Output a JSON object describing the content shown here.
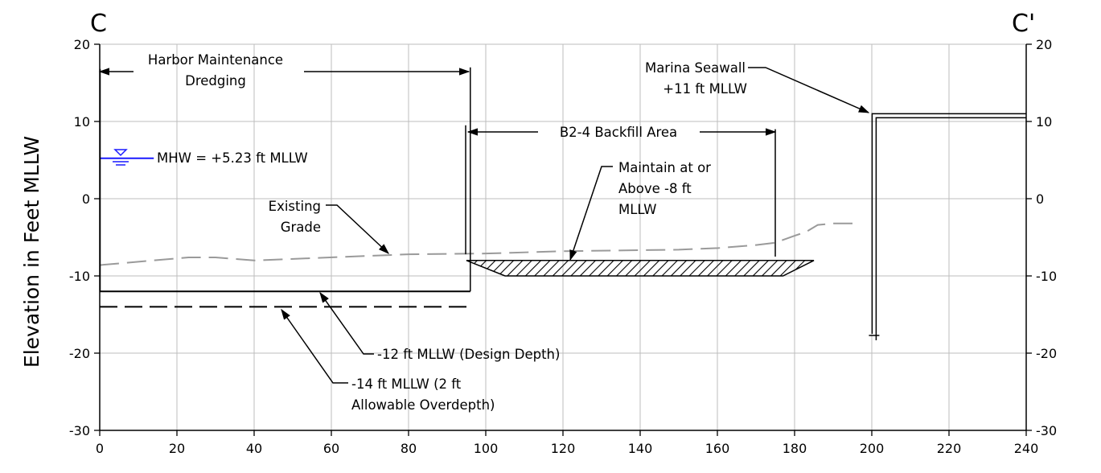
{
  "section": {
    "left_label": "C",
    "right_label": "C'"
  },
  "chart_data": {
    "type": "line",
    "ylabel": "Elevation in Feet MLLW",
    "xlabel": "",
    "xlim": [
      0,
      240
    ],
    "ylim": [
      -30,
      20
    ],
    "xticks": [
      "0",
      "20",
      "40",
      "60",
      "80",
      "100",
      "120",
      "140",
      "160",
      "180",
      "200",
      "220",
      "240"
    ],
    "yticks": [
      "20",
      "10",
      "0",
      "-10",
      "-20",
      "-30"
    ],
    "grid": true,
    "series": [
      {
        "name": "Existing Grade",
        "style": "dashed",
        "color": "#9a9a9a",
        "x": [
          0,
          23,
          30,
          40,
          70,
          80,
          100,
          120,
          150,
          160,
          170,
          175,
          180,
          183,
          186,
          190,
          195
        ],
        "y": [
          -8.6,
          -7.6,
          -7.6,
          -8.0,
          -7.4,
          -7.2,
          -7.1,
          -6.8,
          -6.6,
          -6.4,
          -6.0,
          -5.7,
          -4.8,
          -4.3,
          -3.4,
          -3.2,
          -3.2
        ]
      },
      {
        "name": "-12 ft MLLW (Design Depth)",
        "style": "solid",
        "color": "#000000",
        "x": [
          0,
          96
        ],
        "y": [
          -12,
          -12
        ]
      },
      {
        "name": "-14 ft MLLW (2 ft Allowable Overdepth)",
        "style": "dashed",
        "color": "#000000",
        "x": [
          0,
          96
        ],
        "y": [
          -14,
          -14
        ]
      },
      {
        "name": "MHW = +5.23 ft MLLW",
        "style": "solid",
        "color": "#1a1aff",
        "x": [
          0,
          14
        ],
        "y": [
          5.23,
          5.23
        ]
      }
    ],
    "backfill_polygon": {
      "x": [
        95,
        185,
        177,
        105
      ],
      "y": [
        -8,
        -8,
        -10,
        -10
      ]
    },
    "seawall": {
      "x": 200.5,
      "top": 11,
      "bottom": -17.5,
      "right_end": 240
    },
    "dredge_limit_x": 96,
    "backfill_extent_x": [
      95,
      175
    ]
  },
  "annotations": {
    "harbor_line1": "Harbor Maintenance",
    "harbor_line2": "Dredging",
    "backfill": "B2-4 Backfill Area",
    "maintain_line1": "Maintain at or",
    "maintain_line2": "Above -8 ft",
    "maintain_line3": "MLLW",
    "existing_line1": "Existing",
    "existing_line2": "Grade",
    "mhw": "MHW = +5.23 ft MLLW",
    "seawall_line1": "Marina Seawall",
    "seawall_line2": "+11 ft MLLW",
    "design_depth": "-12 ft MLLW (Design Depth)",
    "overdepth_line1": "-14 ft MLLW (2 ft",
    "overdepth_line2": "Allowable Overdepth)"
  }
}
